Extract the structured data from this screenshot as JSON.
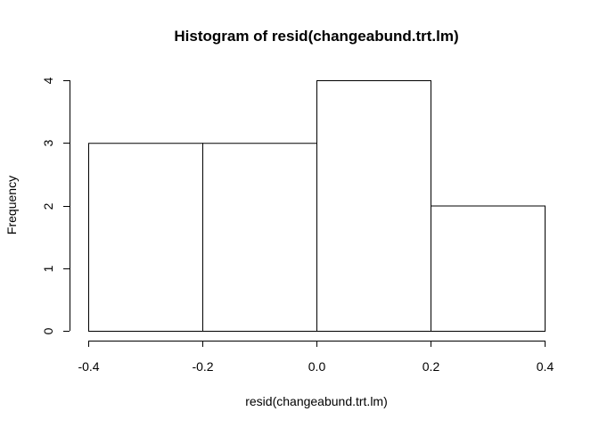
{
  "chart_data": {
    "type": "bar",
    "title": "Histogram of resid(changeabund.trt.lm)",
    "xlabel": "resid(changeabund.trt.lm)",
    "ylabel": "Frequency",
    "bins": [
      {
        "from": -0.4,
        "to": -0.2,
        "count": 3
      },
      {
        "from": -0.2,
        "to": 0.0,
        "count": 3
      },
      {
        "from": 0.0,
        "to": 0.2,
        "count": 4
      },
      {
        "from": 0.2,
        "to": 0.4,
        "count": 2
      }
    ],
    "x_ticks": [
      "-0.4",
      "-0.2",
      "0.0",
      "0.2",
      "0.4"
    ],
    "x_tick_values": [
      -0.4,
      -0.2,
      0.0,
      0.2,
      0.4
    ],
    "y_ticks": [
      "0",
      "1",
      "2",
      "3",
      "4"
    ],
    "y_tick_values": [
      0,
      1,
      2,
      3,
      4
    ],
    "xlim": [
      -0.4,
      0.4
    ],
    "ylim": [
      0,
      4
    ],
    "grid": false,
    "bar_fill": "#ffffff",
    "bar_stroke": "#000000"
  }
}
